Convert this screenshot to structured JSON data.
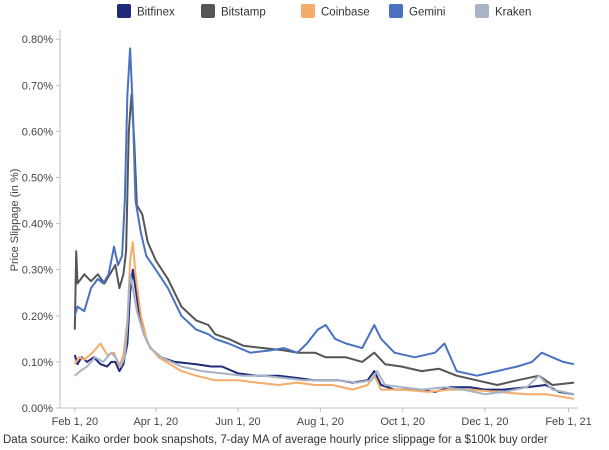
{
  "chart_data": {
    "type": "line",
    "title": "",
    "xlabel": "",
    "ylabel": "Price Slippage (in %)",
    "ylim": [
      0,
      0.0082
    ],
    "xlim": [
      "2020-01-21",
      "2021-02-08"
    ],
    "x_ticks": [
      {
        "date": "2020-02-01",
        "label": "Feb 1, 20"
      },
      {
        "date": "2020-04-01",
        "label": "Apr 1, 20"
      },
      {
        "date": "2020-06-01",
        "label": "Jun 1, 20"
      },
      {
        "date": "2020-08-01",
        "label": "Aug 1, 20"
      },
      {
        "date": "2020-10-01",
        "label": "Oct 1, 20"
      },
      {
        "date": "2020-12-01",
        "label": "Dec 1, 20"
      },
      {
        "date": "2021-02-01",
        "label": "Feb 1, 21"
      }
    ],
    "y_ticks": [
      {
        "value": 0.0,
        "label": "0.00%"
      },
      {
        "value": 0.001,
        "label": "0.10%"
      },
      {
        "value": 0.002,
        "label": "0.20%"
      },
      {
        "value": 0.003,
        "label": "0.30%"
      },
      {
        "value": 0.004,
        "label": "0.40%"
      },
      {
        "value": 0.005,
        "label": "0.50%"
      },
      {
        "value": 0.006,
        "label": "0.60%"
      },
      {
        "value": 0.007,
        "label": "0.70%"
      },
      {
        "value": 0.008,
        "label": "0.80%"
      }
    ],
    "legend_position": "top",
    "source": "Data source: Kaiko order book snapshots, 7-day MA of average hourly price slippage for a $100k buy order",
    "series": [
      {
        "name": "Bitfinex",
        "color": "#1f2a7a",
        "points": [
          [
            "2020-02-01",
            0.00115
          ],
          [
            "2020-02-03",
            0.00095
          ],
          [
            "2020-02-06",
            0.0011
          ],
          [
            "2020-02-10",
            0.001
          ],
          [
            "2020-02-15",
            0.0011
          ],
          [
            "2020-02-20",
            0.00095
          ],
          [
            "2020-02-25",
            0.0009
          ],
          [
            "2020-02-28",
            0.001
          ],
          [
            "2020-03-02",
            0.001
          ],
          [
            "2020-03-05",
            0.0008
          ],
          [
            "2020-03-08",
            0.00095
          ],
          [
            "2020-03-11",
            0.0014
          ],
          [
            "2020-03-13",
            0.0025
          ],
          [
            "2020-03-15",
            0.003
          ],
          [
            "2020-03-17",
            0.0026
          ],
          [
            "2020-03-20",
            0.002
          ],
          [
            "2020-03-24",
            0.00155
          ],
          [
            "2020-03-28",
            0.0013
          ],
          [
            "2020-04-05",
            0.0011
          ],
          [
            "2020-04-15",
            0.001
          ],
          [
            "2020-05-01",
            0.00095
          ],
          [
            "2020-05-12",
            0.0009
          ],
          [
            "2020-05-20",
            0.0009
          ],
          [
            "2020-06-01",
            0.00075
          ],
          [
            "2020-06-15",
            0.0007
          ],
          [
            "2020-07-01",
            0.0007
          ],
          [
            "2020-07-15",
            0.00065
          ],
          [
            "2020-07-27",
            0.0006
          ],
          [
            "2020-08-03",
            0.0006
          ],
          [
            "2020-08-15",
            0.0006
          ],
          [
            "2020-08-25",
            0.00055
          ],
          [
            "2020-09-05",
            0.0006
          ],
          [
            "2020-09-10",
            0.0008
          ],
          [
            "2020-09-15",
            0.0005
          ],
          [
            "2020-09-25",
            0.0004
          ],
          [
            "2020-10-10",
            0.0004
          ],
          [
            "2020-10-25",
            0.00035
          ],
          [
            "2020-11-05",
            0.00045
          ],
          [
            "2020-11-20",
            0.00045
          ],
          [
            "2020-12-01",
            0.0004
          ],
          [
            "2020-12-15",
            0.0004
          ],
          [
            "2021-01-01",
            0.00045
          ],
          [
            "2021-01-15",
            0.0005
          ],
          [
            "2021-01-25",
            0.00035
          ],
          [
            "2021-02-05",
            0.0003
          ]
        ]
      },
      {
        "name": "Bitstamp",
        "color": "#555555",
        "points": [
          [
            "2020-02-01",
            0.0017
          ],
          [
            "2020-02-02",
            0.0034
          ],
          [
            "2020-02-03",
            0.0027
          ],
          [
            "2020-02-08",
            0.0029
          ],
          [
            "2020-02-13",
            0.00275
          ],
          [
            "2020-02-18",
            0.0029
          ],
          [
            "2020-02-23",
            0.0027
          ],
          [
            "2020-02-27",
            0.0029
          ],
          [
            "2020-03-02",
            0.0031
          ],
          [
            "2020-03-05",
            0.0026
          ],
          [
            "2020-03-08",
            0.0029
          ],
          [
            "2020-03-10",
            0.0034
          ],
          [
            "2020-03-12",
            0.006
          ],
          [
            "2020-03-14",
            0.0068
          ],
          [
            "2020-03-16",
            0.0058
          ],
          [
            "2020-03-18",
            0.0044
          ],
          [
            "2020-03-22",
            0.0042
          ],
          [
            "2020-03-26",
            0.0036
          ],
          [
            "2020-04-01",
            0.0032
          ],
          [
            "2020-04-10",
            0.0028
          ],
          [
            "2020-04-20",
            0.0022
          ],
          [
            "2020-05-01",
            0.0019
          ],
          [
            "2020-05-10",
            0.0018
          ],
          [
            "2020-05-15",
            0.0016
          ],
          [
            "2020-05-25",
            0.0015
          ],
          [
            "2020-06-05",
            0.00135
          ],
          [
            "2020-06-20",
            0.0013
          ],
          [
            "2020-07-05",
            0.00125
          ],
          [
            "2020-07-15",
            0.0012
          ],
          [
            "2020-07-28",
            0.0012
          ],
          [
            "2020-08-05",
            0.0011
          ],
          [
            "2020-08-20",
            0.0011
          ],
          [
            "2020-09-01",
            0.001
          ],
          [
            "2020-09-10",
            0.0012
          ],
          [
            "2020-09-18",
            0.00095
          ],
          [
            "2020-09-30",
            0.0009
          ],
          [
            "2020-10-15",
            0.0008
          ],
          [
            "2020-10-28",
            0.00085
          ],
          [
            "2020-11-10",
            0.0007
          ],
          [
            "2020-11-25",
            0.0006
          ],
          [
            "2020-12-10",
            0.0005
          ],
          [
            "2020-12-25",
            0.0006
          ],
          [
            "2021-01-10",
            0.0007
          ],
          [
            "2021-01-20",
            0.0005
          ],
          [
            "2021-02-05",
            0.00055
          ]
        ]
      },
      {
        "name": "Coinbase",
        "color": "#f5ab6a",
        "points": [
          [
            "2020-02-01",
            0.00095
          ],
          [
            "2020-02-04",
            0.0011
          ],
          [
            "2020-02-08",
            0.00105
          ],
          [
            "2020-02-14",
            0.0012
          ],
          [
            "2020-02-20",
            0.0014
          ],
          [
            "2020-02-25",
            0.00115
          ],
          [
            "2020-03-01",
            0.0012
          ],
          [
            "2020-03-05",
            0.0009
          ],
          [
            "2020-03-08",
            0.00115
          ],
          [
            "2020-03-11",
            0.0019
          ],
          [
            "2020-03-13",
            0.0032
          ],
          [
            "2020-03-15",
            0.0036
          ],
          [
            "2020-03-17",
            0.0029
          ],
          [
            "2020-03-21",
            0.002
          ],
          [
            "2020-03-26",
            0.0014
          ],
          [
            "2020-04-03",
            0.0011
          ],
          [
            "2020-04-20",
            0.0008
          ],
          [
            "2020-05-01",
            0.0007
          ],
          [
            "2020-05-15",
            0.0006
          ],
          [
            "2020-06-01",
            0.0006
          ],
          [
            "2020-06-15",
            0.00055
          ],
          [
            "2020-07-01",
            0.0005
          ],
          [
            "2020-07-15",
            0.00055
          ],
          [
            "2020-07-28",
            0.0005
          ],
          [
            "2020-08-10",
            0.0005
          ],
          [
            "2020-08-25",
            0.0004
          ],
          [
            "2020-09-05",
            0.0005
          ],
          [
            "2020-09-10",
            0.0007
          ],
          [
            "2020-09-15",
            0.0004
          ],
          [
            "2020-10-01",
            0.0004
          ],
          [
            "2020-10-20",
            0.00035
          ],
          [
            "2020-11-05",
            0.0004
          ],
          [
            "2020-11-20",
            0.0004
          ],
          [
            "2020-12-10",
            0.00035
          ],
          [
            "2021-01-01",
            0.0003
          ],
          [
            "2021-01-15",
            0.0003
          ],
          [
            "2021-02-05",
            0.0002
          ]
        ]
      },
      {
        "name": "Gemini",
        "color": "#4a72c0",
        "points": [
          [
            "2020-02-01",
            0.002
          ],
          [
            "2020-02-03",
            0.0022
          ],
          [
            "2020-02-08",
            0.0021
          ],
          [
            "2020-02-13",
            0.0026
          ],
          [
            "2020-02-18",
            0.0028
          ],
          [
            "2020-02-22",
            0.0027
          ],
          [
            "2020-02-26",
            0.0029
          ],
          [
            "2020-03-01",
            0.0035
          ],
          [
            "2020-03-04",
            0.0031
          ],
          [
            "2020-03-07",
            0.0033
          ],
          [
            "2020-03-09",
            0.0045
          ],
          [
            "2020-03-11",
            0.0068
          ],
          [
            "2020-03-13",
            0.0078
          ],
          [
            "2020-03-15",
            0.0065
          ],
          [
            "2020-03-17",
            0.0045
          ],
          [
            "2020-03-21",
            0.0038
          ],
          [
            "2020-03-25",
            0.0033
          ],
          [
            "2020-04-01",
            0.003
          ],
          [
            "2020-04-10",
            0.0026
          ],
          [
            "2020-04-20",
            0.002
          ],
          [
            "2020-05-01",
            0.0017
          ],
          [
            "2020-05-10",
            0.0016
          ],
          [
            "2020-05-15",
            0.0015
          ],
          [
            "2020-05-25",
            0.0014
          ],
          [
            "2020-06-10",
            0.0012
          ],
          [
            "2020-06-25",
            0.00125
          ],
          [
            "2020-07-05",
            0.0013
          ],
          [
            "2020-07-15",
            0.0012
          ],
          [
            "2020-07-22",
            0.0014
          ],
          [
            "2020-07-30",
            0.0017
          ],
          [
            "2020-08-05",
            0.0018
          ],
          [
            "2020-08-12",
            0.0015
          ],
          [
            "2020-08-20",
            0.0014
          ],
          [
            "2020-09-01",
            0.0013
          ],
          [
            "2020-09-10",
            0.0018
          ],
          [
            "2020-09-15",
            0.0015
          ],
          [
            "2020-09-25",
            0.0012
          ],
          [
            "2020-10-10",
            0.0011
          ],
          [
            "2020-10-25",
            0.0012
          ],
          [
            "2020-11-01",
            0.0014
          ],
          [
            "2020-11-10",
            0.0008
          ],
          [
            "2020-11-25",
            0.0007
          ],
          [
            "2020-12-10",
            0.0008
          ],
          [
            "2020-12-25",
            0.0009
          ],
          [
            "2021-01-05",
            0.001
          ],
          [
            "2021-01-12",
            0.0012
          ],
          [
            "2021-01-20",
            0.0011
          ],
          [
            "2021-01-28",
            0.001
          ],
          [
            "2021-02-05",
            0.00095
          ]
        ]
      },
      {
        "name": "Kraken",
        "color": "#a8b4c6",
        "points": [
          [
            "2020-02-01",
            0.0007
          ],
          [
            "2020-02-05",
            0.0008
          ],
          [
            "2020-02-10",
            0.0009
          ],
          [
            "2020-02-16",
            0.0011
          ],
          [
            "2020-02-22",
            0.001
          ],
          [
            "2020-02-28",
            0.0012
          ],
          [
            "2020-03-02",
            0.0011
          ],
          [
            "2020-03-06",
            0.0009
          ],
          [
            "2020-03-09",
            0.0011
          ],
          [
            "2020-03-11",
            0.0018
          ],
          [
            "2020-03-13",
            0.0029
          ],
          [
            "2020-03-15",
            0.0026
          ],
          [
            "2020-03-18",
            0.0021
          ],
          [
            "2020-03-23",
            0.0016
          ],
          [
            "2020-03-28",
            0.0013
          ],
          [
            "2020-04-05",
            0.0011
          ],
          [
            "2020-04-20",
            0.0009
          ],
          [
            "2020-05-05",
            0.0008
          ],
          [
            "2020-05-20",
            0.00075
          ],
          [
            "2020-06-05",
            0.0007
          ],
          [
            "2020-06-20",
            0.0007
          ],
          [
            "2020-07-05",
            0.00065
          ],
          [
            "2020-07-20",
            0.0006
          ],
          [
            "2020-08-01",
            0.0006
          ],
          [
            "2020-08-15",
            0.0006
          ],
          [
            "2020-08-28",
            0.00055
          ],
          [
            "2020-09-08",
            0.0006
          ],
          [
            "2020-09-12",
            0.0008
          ],
          [
            "2020-09-18",
            0.0005
          ],
          [
            "2020-10-01",
            0.00045
          ],
          [
            "2020-10-15",
            0.0004
          ],
          [
            "2020-11-01",
            0.00045
          ],
          [
            "2020-11-15",
            0.0004
          ],
          [
            "2020-12-01",
            0.0003
          ],
          [
            "2020-12-15",
            0.00035
          ],
          [
            "2021-01-01",
            0.00045
          ],
          [
            "2021-01-10",
            0.0007
          ],
          [
            "2021-01-20",
            0.0004
          ],
          [
            "2021-02-05",
            0.0003
          ]
        ]
      }
    ]
  }
}
